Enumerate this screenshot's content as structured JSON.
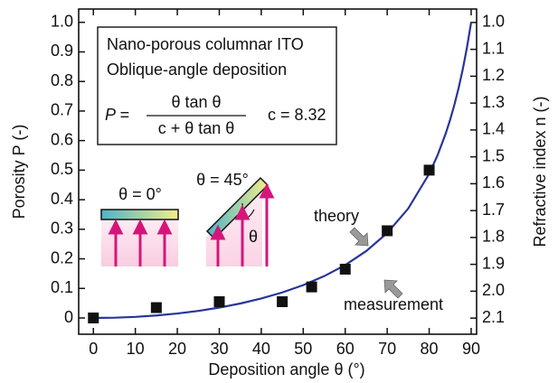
{
  "chart_data": {
    "type": "scatter",
    "xlabel": "Deposition angle  θ  (°)",
    "ylabel": "Porosity  P  (-)",
    "y2label": "Refractive index  n  (-)",
    "xlim": [
      -3.5,
      91.3
    ],
    "ylim": [
      -0.055,
      1.045
    ],
    "y2lim": [
      2.16,
      0.95
    ],
    "xticks": [
      0,
      10,
      20,
      30,
      40,
      50,
      60,
      70,
      80,
      90
    ],
    "yticks": [
      0,
      0.1,
      0.2,
      0.3,
      0.4,
      0.5,
      0.6,
      0.7,
      0.8,
      0.9,
      {
        "value": 1,
        "label": "1.0"
      }
    ],
    "y2ticks": [
      {
        "value": 1,
        "label": "1.0"
      },
      1.1,
      1.2,
      1.3,
      1.4,
      1.5,
      1.6,
      1.7,
      1.8,
      1.9,
      {
        "value": 2,
        "label": "2.0"
      },
      2.1
    ],
    "series": [
      {
        "name": "theory",
        "type": "line",
        "color": "#27349a",
        "x": [
          0,
          5,
          10,
          15,
          20,
          25,
          30,
          35,
          40,
          45,
          50,
          55,
          60,
          65,
          70,
          75,
          80,
          82,
          84,
          85,
          86,
          87,
          88,
          89,
          90
        ],
        "values": [
          0,
          0.0009,
          0.0037,
          0.0084,
          0.015,
          0.0239,
          0.0351,
          0.0489,
          0.0658,
          0.0863,
          0.1111,
          0.1415,
          0.179,
          0.2263,
          0.2875,
          0.37,
          0.4876,
          0.5504,
          0.6264,
          0.6709,
          0.7207,
          0.7769,
          0.8409,
          0.9145,
          1.0
        ]
      },
      {
        "name": "measurement",
        "type": "scatter",
        "color": "#111111",
        "x": [
          0,
          15,
          30,
          45,
          52,
          60,
          70,
          80
        ],
        "values": [
          0.0,
          0.035,
          0.055,
          0.055,
          0.105,
          0.165,
          0.295,
          0.5
        ]
      }
    ],
    "box_lines": [
      "Nano-porous columnar ITO",
      "Oblique-angle deposition"
    ],
    "formula": {
      "lhs": "P =",
      "numerator": "θ tan θ",
      "denominator": "c + θ tan θ",
      "constant": "c = 8.32"
    },
    "inset_labels": [
      "θ = 0°",
      "θ = 45°",
      "θ"
    ]
  }
}
